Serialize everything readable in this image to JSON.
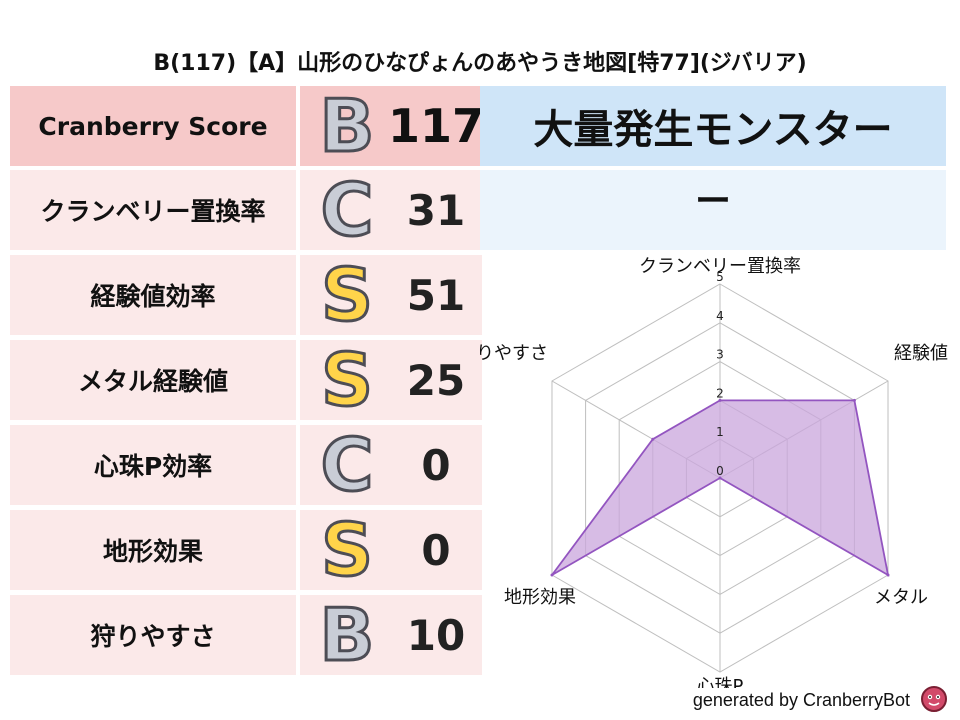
{
  "title": "B(117)【A】山形のひなぴょんのあやうき地図[特77](ジバリア)",
  "score_table": {
    "header": {
      "label": "Cranberry Score",
      "grade": "B",
      "value": "117"
    },
    "rows": [
      {
        "label": "クランベリー置換率",
        "grade": "C",
        "value": "31"
      },
      {
        "label": "経験値効率",
        "grade": "S",
        "value": "51"
      },
      {
        "label": "メタル経験値",
        "grade": "S",
        "value": "25"
      },
      {
        "label": "心珠P効率",
        "grade": "C",
        "value": "0"
      },
      {
        "label": "地形効果",
        "grade": "S",
        "value": "0"
      },
      {
        "label": "狩りやすさ",
        "grade": "B",
        "value": "10"
      }
    ]
  },
  "monster": {
    "header": "大量発生モンスター",
    "value": "ー"
  },
  "chart_data": {
    "type": "radar",
    "axes": [
      "クランベリー置換率",
      "経験値",
      "メタル",
      "心珠P",
      "地形効果",
      "狩りやすさ"
    ],
    "values": [
      2,
      4,
      5,
      0,
      5,
      2
    ],
    "rlim": [
      0,
      5
    ],
    "ticks": [
      "0",
      "1",
      "2",
      "3",
      "4",
      "5"
    ],
    "fill_color": "#c9a6dc",
    "line_color": "#9355c0",
    "grid": true
  },
  "footer": "generated by CranberryBot",
  "colors": {
    "label_bg": "#fbe9e9",
    "header_bg": "#f6c9c9",
    "monster_header_bg": "#cfe5f8",
    "monster_value_bg": "#ebf4fc"
  }
}
